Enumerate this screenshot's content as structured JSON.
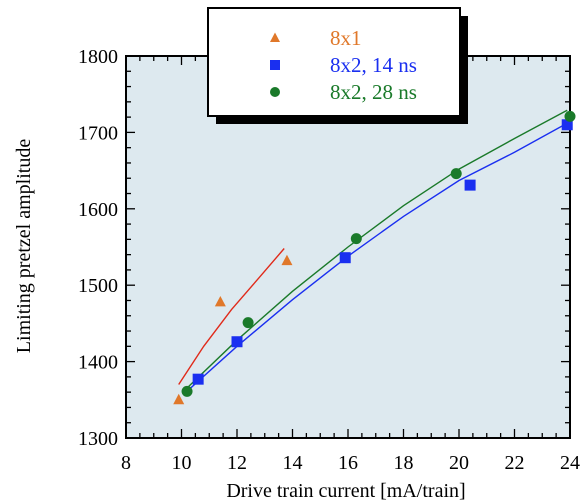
{
  "chart_data": {
    "type": "scatter",
    "title": "",
    "xlabel": "Drive train current [mA/train]",
    "ylabel": "Limiting pretzel amplitude",
    "xlim": [
      8,
      24
    ],
    "ylim": [
      1300,
      1800
    ],
    "xticks": [
      8,
      10,
      12,
      14,
      16,
      18,
      20,
      22,
      24
    ],
    "yticks": [
      1300,
      1400,
      1500,
      1600,
      1700,
      1800
    ],
    "grid": false,
    "legend_position": "top-center",
    "background_color": "#dde9ef",
    "series": [
      {
        "name": "8x1",
        "marker": "triangle",
        "color": "#e0782a",
        "x": [
          9.9,
          11.4,
          13.8
        ],
        "y": [
          1350,
          1478,
          1532
        ],
        "fit_color": "#e02a1a",
        "fit_x": [
          9.9,
          10.8,
          11.8,
          12.8,
          13.7
        ],
        "fit_y": [
          1370,
          1420,
          1468,
          1510,
          1548
        ]
      },
      {
        "name": "8x2, 14 ns",
        "marker": "square",
        "color": "#1a2ff0",
        "x": [
          10.6,
          12.0,
          15.9,
          20.4,
          23.9
        ],
        "y": [
          1377,
          1426,
          1536,
          1631,
          1710
        ],
        "fit_color": "#1a2ff0",
        "fit_x": [
          10.1,
          12,
          14,
          16,
          18,
          20,
          22,
          23.9
        ],
        "fit_y": [
          1358,
          1420,
          1481,
          1538,
          1590,
          1637,
          1674,
          1712
        ]
      },
      {
        "name": "8x2, 28 ns",
        "marker": "circle",
        "color": "#1a7a2a",
        "x": [
          10.2,
          12.4,
          16.3,
          19.9,
          24.0
        ],
        "y": [
          1361,
          1451,
          1561,
          1646,
          1721
        ],
        "fit_color": "#1a7a2a",
        "fit_x": [
          10.1,
          12,
          14,
          16,
          18,
          20,
          22,
          23.9
        ],
        "fit_y": [
          1362,
          1428,
          1492,
          1550,
          1604,
          1652,
          1692,
          1729
        ]
      }
    ]
  }
}
